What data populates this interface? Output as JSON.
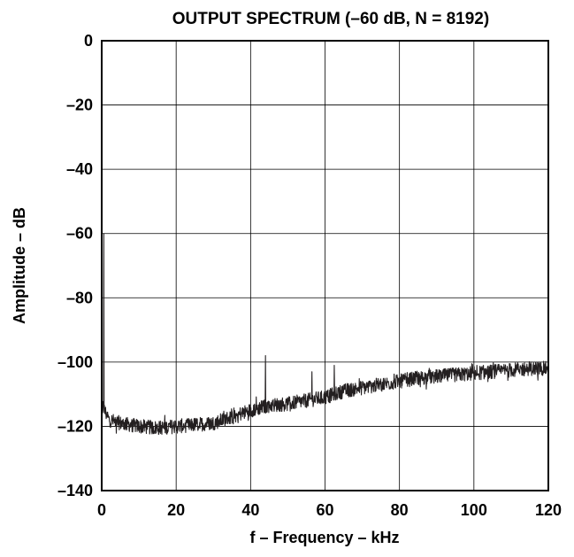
{
  "chart_data": {
    "type": "line",
    "title": "OUTPUT SPECTRUM (–60 dB, N = 8192)",
    "xlabel": "f – Frequency – kHz",
    "ylabel": "Amplitude – dB",
    "xlim": [
      0,
      120
    ],
    "ylim": [
      -140,
      0
    ],
    "x_ticks": [
      0,
      20,
      40,
      60,
      80,
      100,
      120
    ],
    "x_tick_labels": [
      "0",
      "20",
      "40",
      "60",
      "80",
      "100",
      "120"
    ],
    "y_ticks": [
      0,
      -20,
      -40,
      -60,
      -80,
      -100,
      -120,
      -140
    ],
    "y_tick_labels": [
      "0",
      "–20",
      "–40",
      "–60",
      "–80",
      "–100",
      "–120",
      "–140"
    ],
    "grid": true,
    "legend": "none",
    "series": [
      {
        "line_color": "#231f20",
        "envelope_x": [
          0.3,
          2,
          5,
          10,
          15,
          20,
          25,
          30,
          35,
          40,
          45,
          50,
          55,
          60,
          65,
          70,
          75,
          80,
          85,
          90,
          95,
          100,
          105,
          110,
          115,
          120
        ],
        "envelope_y": [
          -114,
          -118,
          -119,
          -120,
          -120.5,
          -120,
          -119.5,
          -119,
          -117,
          -115,
          -113.5,
          -113,
          -112,
          -111,
          -109,
          -108,
          -107,
          -106,
          -105,
          -104.5,
          -104,
          -103.5,
          -103,
          -102.5,
          -102,
          -102
        ],
        "peaks": [
          {
            "x": 0.6,
            "y": -60
          },
          {
            "x": 44,
            "y": -98
          },
          {
            "x": 56.5,
            "y": -103
          },
          {
            "x": 62.5,
            "y": -101
          }
        ]
      }
    ]
  }
}
